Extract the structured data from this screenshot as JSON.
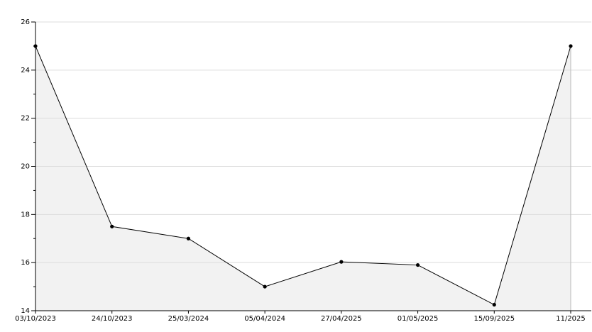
{
  "chart_data": {
    "type": "area",
    "categories": [
      "03/10/2023",
      "24/10/2023",
      "25/03/2024",
      "05/04/2024",
      "27/04/2025",
      "01/05/2025",
      "15/09/2025",
      "11/2025"
    ],
    "values": [
      25,
      17.5,
      17,
      15,
      16.03,
      15.9,
      14.25,
      25
    ],
    "color": "#000000",
    "fill": "#f2f2f2",
    "ylim": [
      14,
      26
    ],
    "yticks": [
      14,
      16,
      18,
      20,
      22,
      24,
      26
    ],
    "yminorticks": [
      15,
      17,
      19,
      21,
      23,
      25
    ],
    "grid": true
  }
}
